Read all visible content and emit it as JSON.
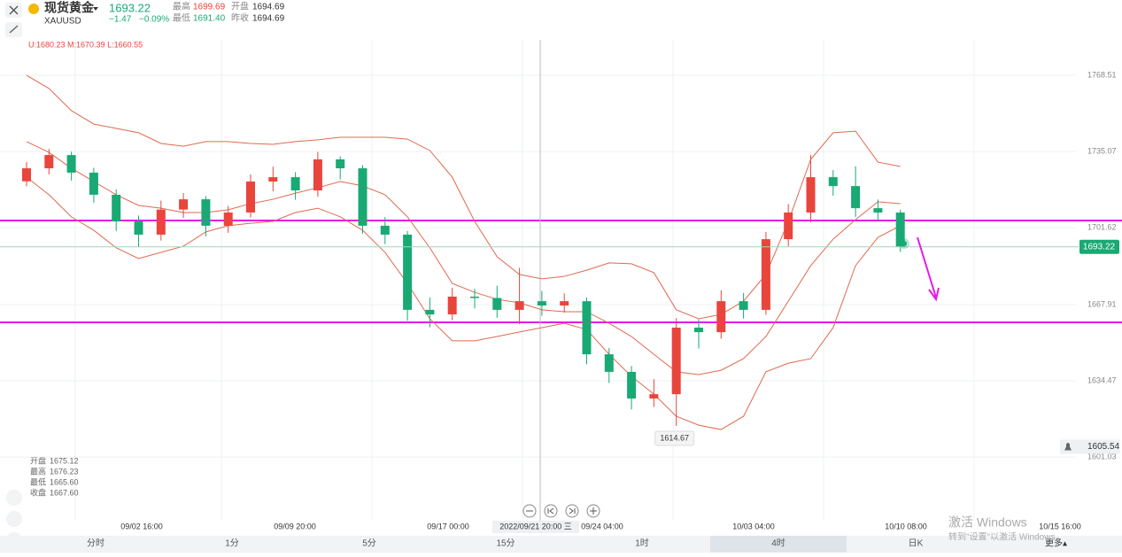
{
  "header": {
    "name": "现货黄金",
    "symbol": "XAUUSD",
    "price": "1693.22",
    "change": "−1.47",
    "change_pct": "−0.09%",
    "stats": [
      {
        "label": "最高",
        "value": "1699.69"
      },
      {
        "label": "最低",
        "value": "1691.40"
      },
      {
        "label": "开盘",
        "value": "1694.69"
      },
      {
        "label": "昨收",
        "value": "1694.69"
      }
    ]
  },
  "indicator": "U:1680.23 M:1670.39 L:1660.55",
  "chart_data": {
    "type": "candlestick",
    "ylim": [
      1573.1,
      1784.05
    ],
    "yticks": [
      1601.03,
      1634.47,
      1667.91,
      1701.62,
      1735.07,
      1768.51
    ],
    "up_color": "#e8453c",
    "down_color": "#19a974",
    "band_color": "#e0694f",
    "level_color": "#e619e6",
    "candles": {
      "open": [
        1722.0,
        1727.7,
        1733.5,
        1725.8,
        1716.1,
        1704.4,
        1698.6,
        1709.6,
        1714.1,
        1702.5,
        1708.3,
        1721.9,
        1723.8,
        1718.0,
        1731.6,
        1727.7,
        1702.5,
        1698.6,
        1665.6,
        1663.6,
        1671.4,
        1670.8,
        1665.6,
        1669.4,
        1667.5,
        1669.4,
        1646.1,
        1638.4,
        1626.7,
        1628.6,
        1657.8,
        1655.8,
        1669.4,
        1665.6,
        1696.6,
        1708.3,
        1723.8,
        1719.9,
        1710.2,
        1708.3
      ],
      "high": [
        1730.5,
        1736.2,
        1735.0,
        1727.9,
        1718.4,
        1707.0,
        1713.5,
        1716.8,
        1715.5,
        1711.2,
        1725.0,
        1728.4,
        1726.0,
        1734.9,
        1733.0,
        1729.1,
        1706.3,
        1700.2,
        1671.0,
        1675.3,
        1674.8,
        1676.2,
        1684.0,
        1673.9,
        1672.8,
        1671.0,
        1648.9,
        1641.0,
        1635.2,
        1662.0,
        1661.4,
        1674.2,
        1673.0,
        1699.8,
        1712.0,
        1733.5,
        1726.9,
        1728.6,
        1714.0,
        1709.5
      ],
      "low": [
        1719.8,
        1725.0,
        1722.3,
        1712.6,
        1700.2,
        1693.1,
        1696.0,
        1705.9,
        1697.8,
        1699.4,
        1706.1,
        1717.6,
        1713.9,
        1715.2,
        1722.8,
        1699.0,
        1694.4,
        1660.8,
        1657.9,
        1661.0,
        1666.2,
        1662.1,
        1659.3,
        1663.0,
        1664.4,
        1641.7,
        1633.5,
        1621.9,
        1623.0,
        1614.67,
        1648.6,
        1652.9,
        1661.8,
        1663.4,
        1693.5,
        1704.0,
        1715.7,
        1706.4,
        1704.8,
        1691.0
      ],
      "close": [
        1727.7,
        1733.5,
        1725.8,
        1716.1,
        1704.4,
        1698.6,
        1709.6,
        1714.1,
        1702.5,
        1708.3,
        1721.9,
        1723.8,
        1718.0,
        1731.6,
        1727.7,
        1702.5,
        1698.6,
        1665.6,
        1663.6,
        1671.4,
        1670.8,
        1665.6,
        1669.4,
        1667.5,
        1669.4,
        1646.1,
        1638.4,
        1626.7,
        1628.6,
        1657.8,
        1655.8,
        1669.4,
        1665.6,
        1696.6,
        1708.3,
        1723.8,
        1719.9,
        1710.2,
        1708.3,
        1693.2
      ]
    },
    "bands": {
      "upper": [
        1768.5,
        1762.7,
        1753.0,
        1747.1,
        1745.2,
        1743.3,
        1738.6,
        1737.4,
        1739.4,
        1739.4,
        1738.6,
        1738.2,
        1739.4,
        1740.2,
        1741.3,
        1741.3,
        1741.3,
        1740.5,
        1735.5,
        1723.8,
        1704.4,
        1688.9,
        1681.1,
        1679.2,
        1680.3,
        1683.0,
        1686.2,
        1685.8,
        1681.9,
        1665.6,
        1661.7,
        1663.6,
        1669.4,
        1681.1,
        1704.4,
        1731.6,
        1743.3,
        1744.0,
        1730.4,
        1728.5
      ],
      "middle": [
        1739.4,
        1734.7,
        1727.7,
        1721.9,
        1716.1,
        1711.4,
        1710.2,
        1708.3,
        1708.3,
        1709.5,
        1712.2,
        1714.1,
        1716.8,
        1719.2,
        1721.9,
        1720.0,
        1716.1,
        1706.4,
        1692.8,
        1677.2,
        1673.3,
        1670.2,
        1668.7,
        1665.6,
        1664.8,
        1664.8,
        1659.7,
        1653.9,
        1646.1,
        1638.4,
        1637.2,
        1639.1,
        1644.2,
        1653.9,
        1669.4,
        1685.0,
        1696.6,
        1705.2,
        1713.0,
        1712.2
      ],
      "lower": [
        1723.8,
        1716.1,
        1706.4,
        1700.5,
        1692.8,
        1688.1,
        1690.8,
        1693.5,
        1699.8,
        1702.5,
        1703.6,
        1704.4,
        1708.3,
        1710.2,
        1706.4,
        1700.5,
        1690.8,
        1677.2,
        1661.7,
        1652.0,
        1652.0,
        1653.9,
        1655.9,
        1657.8,
        1659.7,
        1657.0,
        1646.1,
        1636.4,
        1628.6,
        1618.9,
        1615.0,
        1613.1,
        1618.9,
        1638.4,
        1642.2,
        1644.2,
        1657.8,
        1685.0,
        1697.4,
        1702.5
      ]
    },
    "levels": [
      1704.8,
      1660.1
    ],
    "last_price": 1693.22,
    "alert_price": 1605.54,
    "xlabels": [
      "09/02 16:00",
      "09/09 20:00",
      "09/17 00:00",
      "09/24 04:00",
      "10/03 04:00",
      "10/10 08:00",
      "10/15 16:00"
    ],
    "crosshair_label": "2022/09/21 20:00 三"
  },
  "ohlc_panel": [
    {
      "label": "开盘",
      "value": "1675.12"
    },
    {
      "label": "最高",
      "value": "1676.23"
    },
    {
      "label": "最低",
      "value": "1665.60"
    },
    {
      "label": "收盘",
      "value": "1667.60"
    }
  ],
  "tabs": [
    "分时",
    "1分",
    "5分",
    "15分",
    "1时",
    "4时",
    "日K"
  ],
  "more": "更多▴",
  "watermark": {
    "title": "激活 Windows",
    "subtitle": "转到\"设置\"以激活 Windows。"
  }
}
